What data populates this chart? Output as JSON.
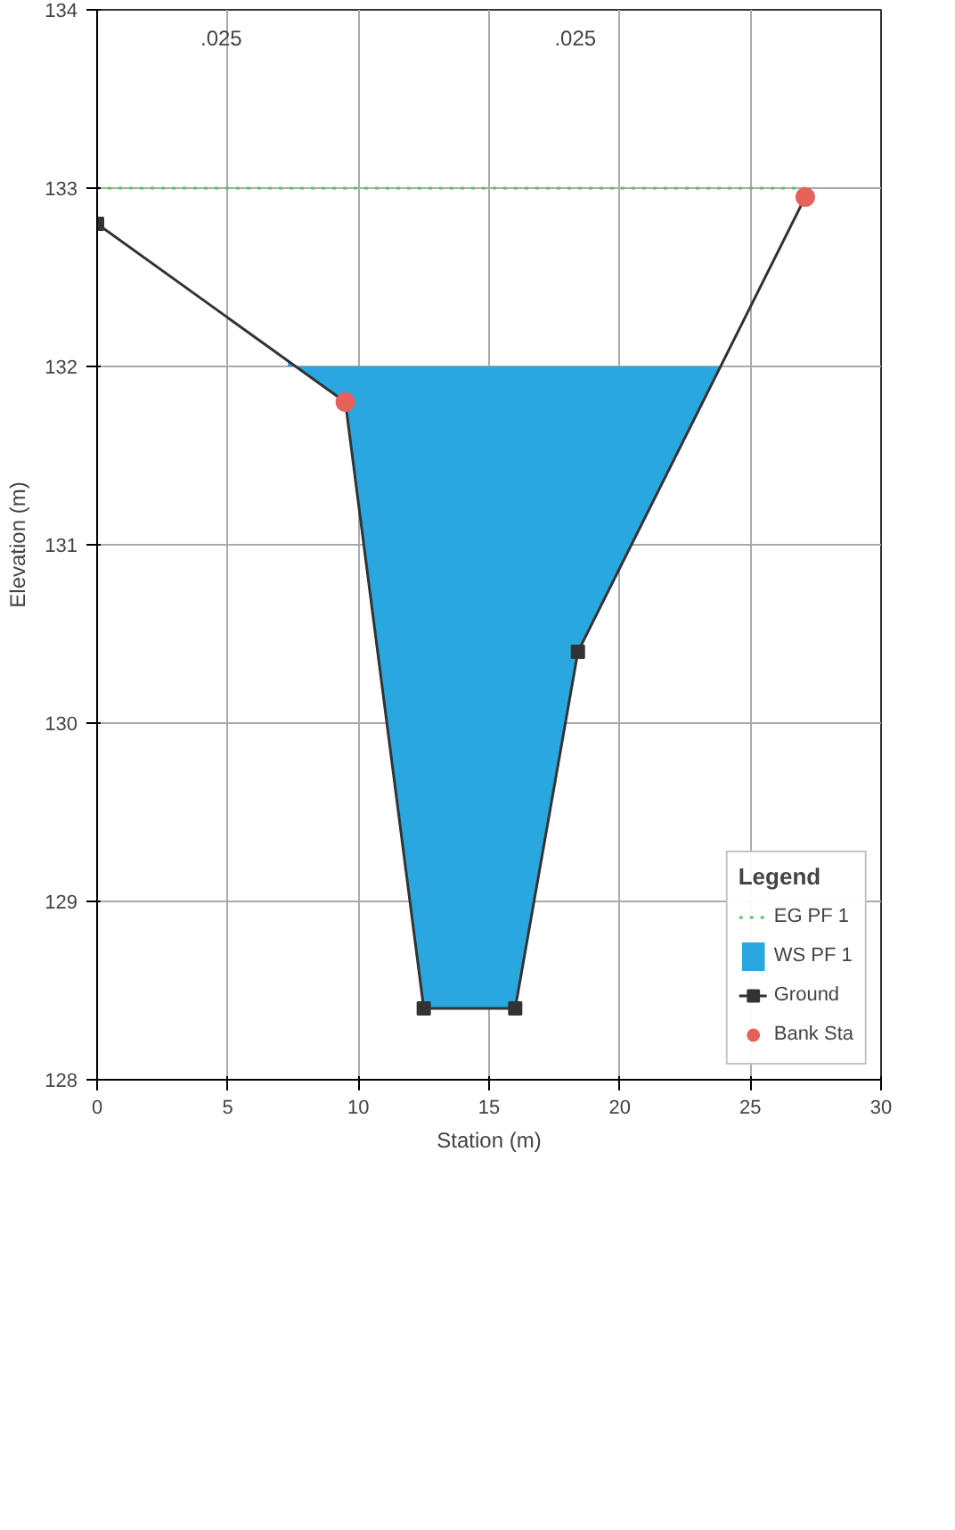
{
  "chart_data": {
    "type": "line",
    "xlabel": "Station (m)",
    "ylabel": "Elevation (m)",
    "legend_title": "Legend",
    "legend": "bottom right",
    "grid": true,
    "xlim": [
      0,
      30
    ],
    "xticks": [
      0,
      5,
      10,
      15,
      20,
      25,
      30
    ],
    "ylim": [
      128,
      134
    ],
    "yticks": [
      128,
      129,
      130,
      131,
      132,
      133,
      134
    ],
    "series": [
      {
        "name": "EG PF 1",
        "type": "line",
        "line_style": "dotted",
        "color": "#5cc46a",
        "x": [
          0,
          27.1
        ],
        "values": [
          133.0,
          133.0
        ]
      },
      {
        "name": "WS PF 1",
        "type": "area",
        "color": "#29a8e0",
        "x": [
          7.3,
          9.5,
          12.5,
          16.0,
          18.4,
          23.9
        ],
        "values": [
          132.0,
          132.0,
          132.0,
          132.0,
          132.0,
          132.0
        ]
      },
      {
        "name": "Ground",
        "marker": "square",
        "color": "#333333",
        "x": [
          0,
          9.5,
          12.5,
          16.0,
          18.4,
          27.1
        ],
        "values": [
          132.8,
          131.8,
          128.4,
          128.4,
          130.4,
          132.95
        ]
      },
      {
        "name": "Bank Sta",
        "type": "scatter",
        "marker": "circle",
        "color": "#e8605a",
        "x": [
          9.5,
          27.1
        ],
        "values": [
          131.8,
          132.95
        ]
      }
    ],
    "annotations": [
      ".025",
      ".025"
    ]
  }
}
